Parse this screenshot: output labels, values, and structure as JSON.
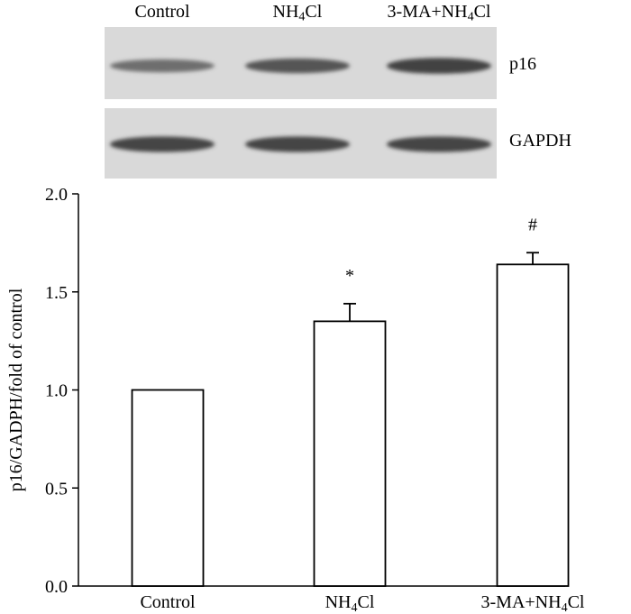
{
  "blot": {
    "lanes": [
      {
        "pre": "Control",
        "sub": "",
        "post": ""
      },
      {
        "pre": "NH",
        "sub": "4",
        "post": "Cl"
      },
      {
        "pre": "3-MA+NH",
        "sub": "4",
        "post": "Cl"
      }
    ],
    "bands": [
      "p16",
      "GAPDH"
    ],
    "intensity": {
      "p16": [
        0.55,
        0.78,
        0.95
      ],
      "GAPDH": [
        0.92,
        0.92,
        0.92
      ]
    }
  },
  "chart_data": {
    "type": "bar",
    "categories": [
      {
        "pre": "Control",
        "sub": "",
        "post": ""
      },
      {
        "pre": "NH",
        "sub": "4",
        "post": "Cl"
      },
      {
        "pre": "3-MA+NH",
        "sub": "4",
        "post": "Cl"
      }
    ],
    "series": [
      {
        "values": [
          1.0,
          1.35,
          1.64
        ],
        "errors": [
          0.0,
          0.09,
          0.06
        ],
        "fill": "#ffffff",
        "stroke": "#000000"
      }
    ],
    "annotations": [
      "",
      "*",
      "#"
    ],
    "ylabel": "p16/GADPH/fold of control",
    "ylim": [
      0,
      2.0
    ],
    "yticks": [
      "0.0",
      "0.5",
      "1.0",
      "1.5",
      "2.0"
    ],
    "grid": false
  }
}
